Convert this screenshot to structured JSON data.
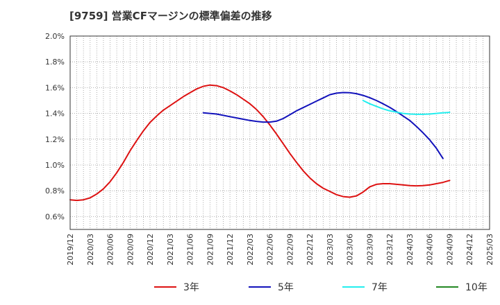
{
  "chart_data": {
    "type": "line",
    "title": "[9759]  営業CFマージンの標準偏差の推移",
    "xlabel": "",
    "ylabel": "",
    "ylim": [
      0.5,
      2.0
    ],
    "yticks": [
      "0.6%",
      "0.8%",
      "1.0%",
      "1.2%",
      "1.4%",
      "1.6%",
      "1.8%",
      "2.0%"
    ],
    "xticks": [
      "2019/12",
      "2020/03",
      "2020/06",
      "2020/09",
      "2020/12",
      "2021/03",
      "2021/06",
      "2021/09",
      "2021/12",
      "2022/03",
      "2022/06",
      "2022/09",
      "2022/12",
      "2023/03",
      "2023/06",
      "2023/09",
      "2023/12",
      "2024/03",
      "2024/06",
      "2024/09",
      "2024/12",
      "2025/03"
    ],
    "grid": true,
    "legend_position": "bottom",
    "series": [
      {
        "name": "3年",
        "color": "#dd1111",
        "points": [
          [
            "2019/12",
            0.73
          ],
          [
            "2020/01",
            0.725
          ],
          [
            "2020/02",
            0.73
          ],
          [
            "2020/03",
            0.745
          ],
          [
            "2020/04",
            0.775
          ],
          [
            "2020/05",
            0.815
          ],
          [
            "2020/06",
            0.87
          ],
          [
            "2020/07",
            0.94
          ],
          [
            "2020/08",
            1.02
          ],
          [
            "2020/09",
            1.11
          ],
          [
            "2020/10",
            1.19
          ],
          [
            "2020/11",
            1.265
          ],
          [
            "2020/12",
            1.33
          ],
          [
            "2021/01",
            1.38
          ],
          [
            "2021/02",
            1.425
          ],
          [
            "2021/03",
            1.46
          ],
          [
            "2021/04",
            1.495
          ],
          [
            "2021/05",
            1.53
          ],
          [
            "2021/06",
            1.56
          ],
          [
            "2021/07",
            1.59
          ],
          [
            "2021/08",
            1.61
          ],
          [
            "2021/09",
            1.62
          ],
          [
            "2021/10",
            1.615
          ],
          [
            "2021/11",
            1.6
          ],
          [
            "2021/12",
            1.575
          ],
          [
            "2022/01",
            1.545
          ],
          [
            "2022/02",
            1.51
          ],
          [
            "2022/03",
            1.475
          ],
          [
            "2022/04",
            1.43
          ],
          [
            "2022/05",
            1.375
          ],
          [
            "2022/06",
            1.31
          ],
          [
            "2022/07",
            1.24
          ],
          [
            "2022/08",
            1.165
          ],
          [
            "2022/09",
            1.09
          ],
          [
            "2022/10",
            1.02
          ],
          [
            "2022/11",
            0.955
          ],
          [
            "2022/12",
            0.9
          ],
          [
            "2023/01",
            0.855
          ],
          [
            "2023/02",
            0.82
          ],
          [
            "2023/03",
            0.795
          ],
          [
            "2023/04",
            0.77
          ],
          [
            "2023/05",
            0.755
          ],
          [
            "2023/06",
            0.75
          ],
          [
            "2023/07",
            0.76
          ],
          [
            "2023/08",
            0.79
          ],
          [
            "2023/09",
            0.83
          ],
          [
            "2023/10",
            0.85
          ],
          [
            "2023/11",
            0.855
          ],
          [
            "2023/12",
            0.855
          ],
          [
            "2024/01",
            0.85
          ],
          [
            "2024/02",
            0.845
          ],
          [
            "2024/03",
            0.84
          ],
          [
            "2024/04",
            0.838
          ],
          [
            "2024/05",
            0.84
          ],
          [
            "2024/06",
            0.845
          ],
          [
            "2024/07",
            0.855
          ],
          [
            "2024/08",
            0.865
          ],
          [
            "2024/09",
            0.88
          ]
        ]
      },
      {
        "name": "5年",
        "color": "#1111bb",
        "points": [
          [
            "2021/08",
            1.405
          ],
          [
            "2021/09",
            1.4
          ],
          [
            "2021/10",
            1.395
          ],
          [
            "2021/11",
            1.385
          ],
          [
            "2021/12",
            1.375
          ],
          [
            "2022/01",
            1.365
          ],
          [
            "2022/02",
            1.355
          ],
          [
            "2022/03",
            1.345
          ],
          [
            "2022/04",
            1.338
          ],
          [
            "2022/05",
            1.333
          ],
          [
            "2022/06",
            1.333
          ],
          [
            "2022/07",
            1.34
          ],
          [
            "2022/08",
            1.36
          ],
          [
            "2022/09",
            1.39
          ],
          [
            "2022/10",
            1.42
          ],
          [
            "2022/11",
            1.445
          ],
          [
            "2022/12",
            1.47
          ],
          [
            "2023/01",
            1.495
          ],
          [
            "2023/02",
            1.52
          ],
          [
            "2023/03",
            1.545
          ],
          [
            "2023/04",
            1.557
          ],
          [
            "2023/05",
            1.562
          ],
          [
            "2023/06",
            1.56
          ],
          [
            "2023/07",
            1.553
          ],
          [
            "2023/08",
            1.54
          ],
          [
            "2023/09",
            1.522
          ],
          [
            "2023/10",
            1.5
          ],
          [
            "2023/11",
            1.475
          ],
          [
            "2023/12",
            1.447
          ],
          [
            "2024/01",
            1.415
          ],
          [
            "2024/02",
            1.38
          ],
          [
            "2024/03",
            1.345
          ],
          [
            "2024/04",
            1.3
          ],
          [
            "2024/05",
            1.25
          ],
          [
            "2024/06",
            1.195
          ],
          [
            "2024/07",
            1.13
          ],
          [
            "2024/08",
            1.05
          ]
        ]
      },
      {
        "name": "7年",
        "color": "#22eeee",
        "points": [
          [
            "2023/08",
            1.5
          ],
          [
            "2023/09",
            1.475
          ],
          [
            "2023/10",
            1.455
          ],
          [
            "2023/11",
            1.435
          ],
          [
            "2023/12",
            1.42
          ],
          [
            "2024/01",
            1.41
          ],
          [
            "2024/02",
            1.4
          ],
          [
            "2024/03",
            1.395
          ],
          [
            "2024/04",
            1.393
          ],
          [
            "2024/05",
            1.393
          ],
          [
            "2024/06",
            1.395
          ],
          [
            "2024/07",
            1.4
          ],
          [
            "2024/08",
            1.405
          ],
          [
            "2024/09",
            1.408
          ]
        ]
      },
      {
        "name": "10年",
        "color": "#228822",
        "points": []
      }
    ]
  }
}
